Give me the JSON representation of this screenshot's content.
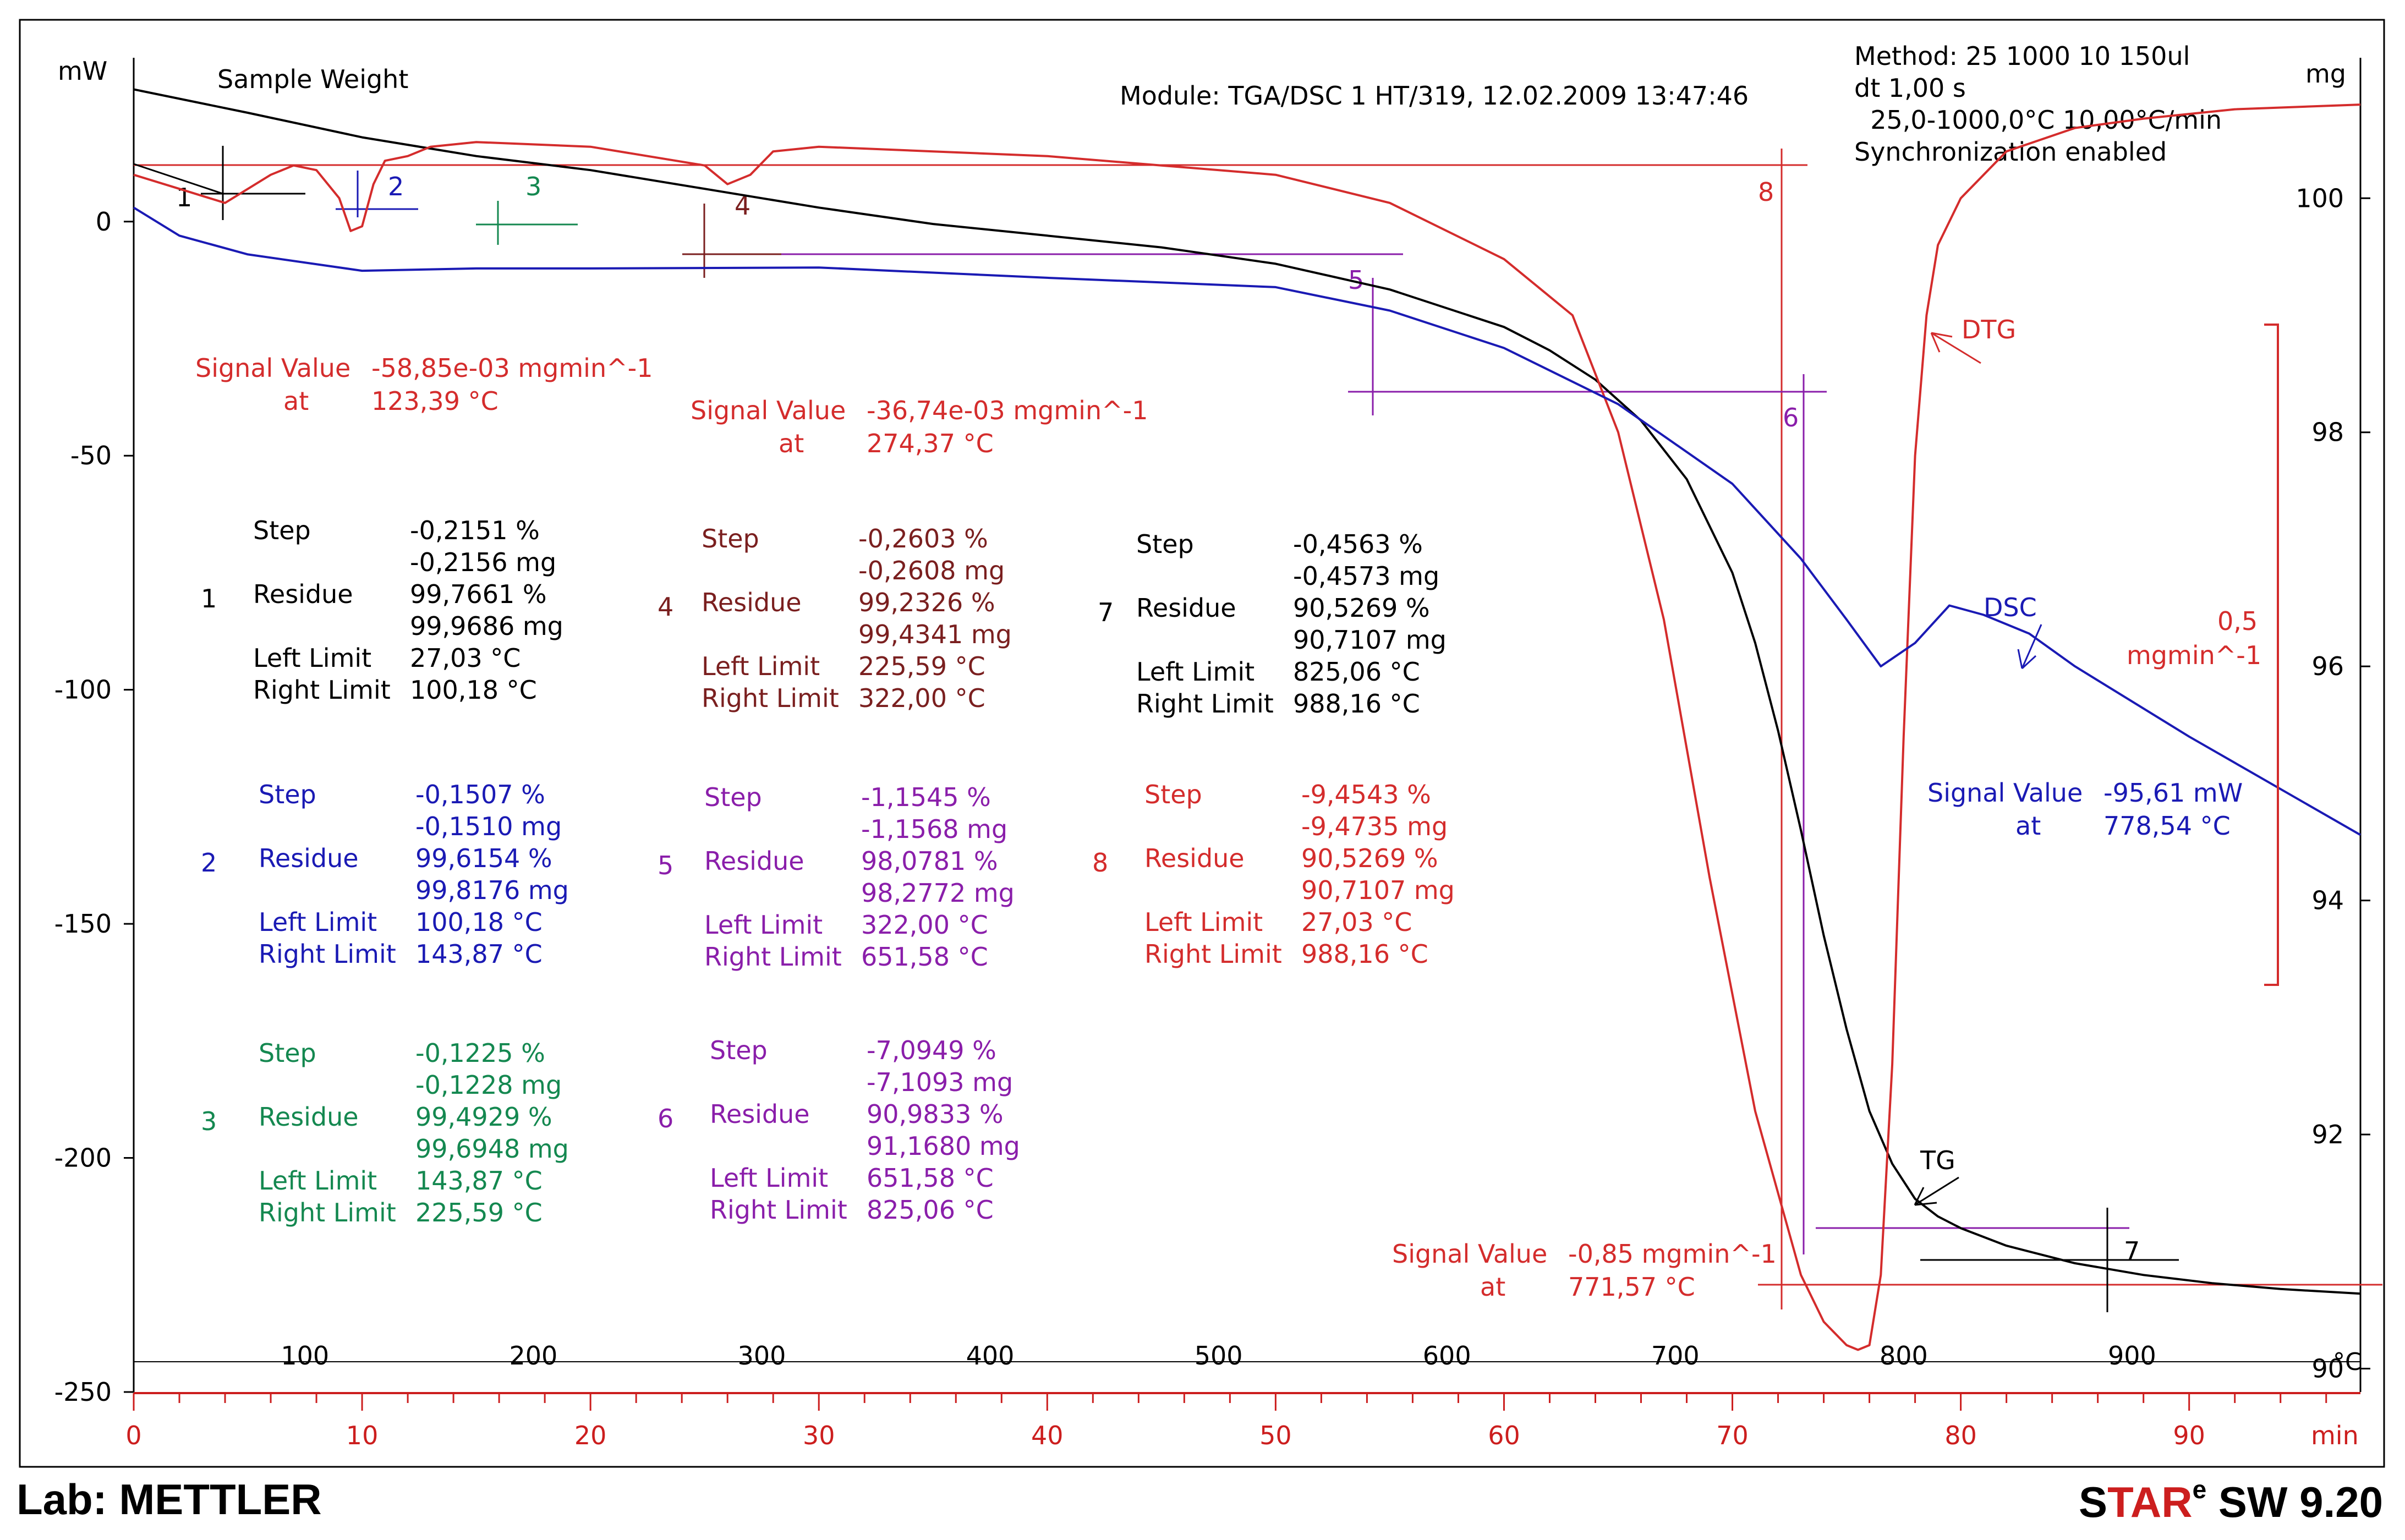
{
  "header": {
    "module": "Module: TGA/DSC 1 HT/319, 12.02.2009 13:47:46",
    "method_lines": [
      "Method: 25 1000 10 150ul",
      "dt 1,00 s",
      "  25,0-1000,0°C 10,00°C/min",
      "Synchronization enabled"
    ],
    "sample_weight": "Sample Weight"
  },
  "footer": {
    "lab": "Lab: METTLER",
    "star": "STAR",
    "star_sup": "e",
    "sw": " SW 9.20"
  },
  "colors": {
    "tg": "#000000",
    "dtg": "#d42c2c",
    "dsc": "#1a1ab4",
    "step1": "#000000",
    "step2": "#1a1ab4",
    "step3": "#148850",
    "step4": "#7a1f1f",
    "step5": "#8a1eaa",
    "step6": "#8a1eaa",
    "step7": "#000000",
    "step8": "#d42c2c"
  },
  "chart_data": {
    "type": "line",
    "title": "Module: TGA/DSC 1 HT/319, 12.02.2009 13:47:46",
    "left_axis": {
      "label": "mW",
      "ylim": [
        -250,
        35
      ],
      "ticks": [
        0,
        -50,
        -100,
        -150,
        -200,
        -250
      ],
      "tick_labels": [
        "0",
        "-50",
        "-100",
        "-150",
        "-200",
        "-250"
      ]
    },
    "right_axis": {
      "label": "mg",
      "ylim": [
        89.8,
        101.2
      ],
      "ticks": [
        100,
        98,
        96,
        94,
        92,
        90
      ],
      "tick_labels": [
        "100",
        "98",
        "96",
        "94",
        "92",
        "90"
      ]
    },
    "time_axis": {
      "label": "min",
      "xlim": [
        0,
        97.5
      ],
      "ticks": [
        0,
        10,
        20,
        30,
        40,
        50,
        60,
        70,
        80,
        90
      ],
      "tick_labels": [
        "0",
        "10",
        "20",
        "30",
        "40",
        "50",
        "60",
        "70",
        "80",
        "90"
      ]
    },
    "temp_axis": {
      "label": "°C",
      "ticks": [
        100,
        200,
        300,
        400,
        500,
        600,
        700,
        800,
        900
      ],
      "tick_labels": [
        "100",
        "200",
        "300",
        "400",
        "500",
        "600",
        "700",
        "800",
        "900"
      ]
    },
    "series": [
      {
        "name": "TG",
        "axis": "right",
        "label": "TG",
        "x": [
          0,
          5,
          10,
          15,
          20,
          25,
          30,
          35,
          40,
          45,
          50,
          55,
          60,
          62,
          64,
          66,
          68,
          70,
          71,
          72,
          73,
          74,
          75,
          76,
          77,
          78,
          79,
          80,
          82,
          85,
          88,
          91,
          94,
          97.5
        ],
        "y": [
          100.93,
          100.73,
          100.52,
          100.36,
          100.24,
          100.08,
          99.92,
          99.78,
          99.68,
          99.58,
          99.44,
          99.22,
          98.9,
          98.7,
          98.45,
          98.1,
          97.6,
          96.8,
          96.2,
          95.45,
          94.6,
          93.7,
          92.9,
          92.2,
          91.75,
          91.45,
          91.3,
          91.2,
          91.05,
          90.9,
          90.8,
          90.73,
          90.68,
          90.64
        ]
      },
      {
        "name": "DTG",
        "axis": "left",
        "label": "DTG",
        "x": [
          0,
          2,
          4,
          6,
          7,
          8,
          9,
          9.5,
          10,
          10.5,
          11,
          12,
          13,
          15,
          20,
          25,
          26,
          27,
          28,
          30,
          35,
          40,
          45,
          50,
          55,
          60,
          63,
          65,
          67,
          69,
          71,
          73,
          74,
          75,
          75.5,
          76,
          76.5,
          77,
          77.5,
          78,
          78.5,
          79,
          80,
          82,
          85,
          88,
          92,
          97.5
        ],
        "y": [
          10,
          7,
          4,
          10,
          12,
          11,
          5,
          -2,
          -1,
          8,
          13,
          14,
          16,
          17,
          16,
          12,
          8,
          10,
          15,
          16,
          15,
          14,
          12,
          10,
          4,
          -8,
          -20,
          -45,
          -85,
          -140,
          -190,
          -225,
          -235,
          -240,
          -241,
          -240,
          -225,
          -180,
          -110,
          -50,
          -20,
          -5,
          5,
          15,
          20,
          22,
          24,
          25
        ]
      },
      {
        "name": "DSC",
        "axis": "left",
        "label": "DSC",
        "x": [
          0,
          2,
          5,
          10,
          15,
          20,
          30,
          40,
          50,
          55,
          60,
          65,
          70,
          73,
          75,
          76.5,
          78,
          79.5,
          81,
          83,
          85,
          90,
          97.5
        ],
        "y": [
          3,
          -3,
          -7,
          -10.5,
          -10,
          -10,
          -9.8,
          -12,
          -14,
          -19,
          -27,
          -39,
          -56,
          -72,
          -85,
          -95,
          -90,
          -82,
          -84,
          -88,
          -95,
          -110,
          -131
        ]
      }
    ],
    "steps": [
      {
        "n": "1",
        "step_pct": "-0,2151 %",
        "step_mg": "-0,2156 mg",
        "residue_pct": "99,7661 %",
        "residue_mg": "99,9686 mg",
        "left": "27,03 °C",
        "right": "100,18 °C"
      },
      {
        "n": "2",
        "step_pct": "-0,1507 %",
        "step_mg": "-0,1510 mg",
        "residue_pct": "99,6154 %",
        "residue_mg": "99,8176 mg",
        "left": "100,18 °C",
        "right": "143,87 °C"
      },
      {
        "n": "3",
        "step_pct": "-0,1225 %",
        "step_mg": "-0,1228 mg",
        "residue_pct": "99,4929 %",
        "residue_mg": "99,6948 mg",
        "left": "143,87 °C",
        "right": "225,59 °C"
      },
      {
        "n": "4",
        "step_pct": "-0,2603 %",
        "step_mg": "-0,2608 mg",
        "residue_pct": "99,2326 %",
        "residue_mg": "99,4341 mg",
        "left": "225,59 °C",
        "right": "322,00 °C"
      },
      {
        "n": "5",
        "step_pct": "-1,1545 %",
        "step_mg": "-1,1568 mg",
        "residue_pct": "98,0781 %",
        "residue_mg": "98,2772 mg",
        "left": "322,00 °C",
        "right": "651,58 °C"
      },
      {
        "n": "6",
        "step_pct": "-7,0949 %",
        "step_mg": "-7,1093 mg",
        "residue_pct": "90,9833 %",
        "residue_mg": "91,1680 mg",
        "left": "651,58 °C",
        "right": "825,06 °C"
      },
      {
        "n": "7",
        "step_pct": "-0,4563 %",
        "step_mg": "-0,4573 mg",
        "residue_pct": "90,5269 %",
        "residue_mg": "90,7107 mg",
        "left": "825,06 °C",
        "right": "988,16 °C"
      },
      {
        "n": "8",
        "step_pct": "-9,4543 %",
        "step_mg": "-9,4735 mg",
        "residue_pct": "90,5269 %",
        "residue_mg": "90,7107 mg",
        "left": "27,03 °C",
        "right": "988,16 °C"
      }
    ],
    "step_labels": {
      "step": "Step",
      "residue": "Residue",
      "left": "Left Limit",
      "right": "Right Limit"
    },
    "signal_values": [
      {
        "label": "Signal Value",
        "value": "-58,85e-03 mgmin^-1",
        "at_label": "at",
        "at": "123,39 °C"
      },
      {
        "label": "Signal Value",
        "value": "-36,74e-03 mgmin^-1",
        "at_label": "at",
        "at": "274,37 °C"
      },
      {
        "label": "Signal Value",
        "value": "-95,61 mW",
        "at_label": "at",
        "at": "778,54 °C"
      },
      {
        "label": "Signal Value",
        "value": "-0,85 mgmin^-1",
        "at_label": "at",
        "at": "771,57 °C"
      }
    ],
    "scale_bar": {
      "value": "0,5",
      "unit": "mgmin^-1"
    }
  }
}
